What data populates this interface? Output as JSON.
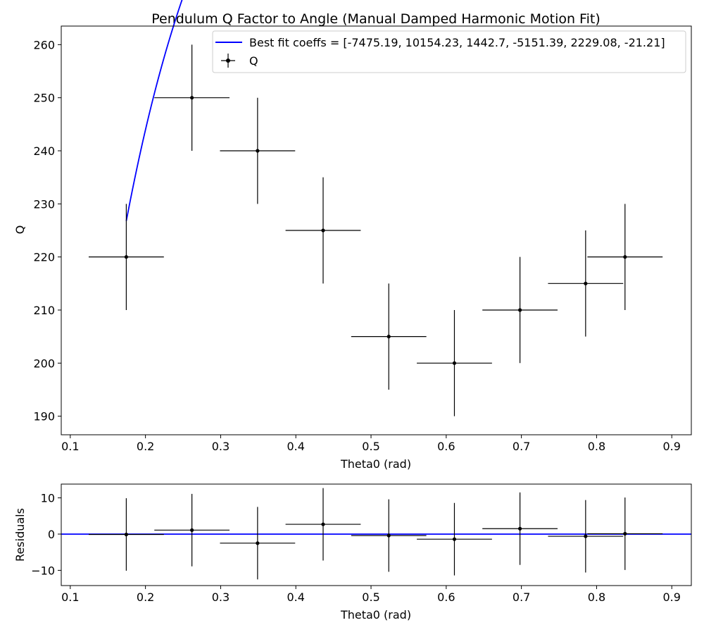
{
  "chart_data": [
    {
      "type": "scatter",
      "title": "Pendulum Q Factor to Angle (Manual Damped Harmonic Motion Fit)",
      "xlabel": "Theta0 (rad)",
      "ylabel": "Q",
      "xlim": [
        0.088,
        0.926
      ],
      "ylim": [
        186.5,
        263.5
      ],
      "xticks": [
        0.1,
        0.2,
        0.3,
        0.4,
        0.5,
        0.6,
        0.7,
        0.8,
        0.9
      ],
      "xtick_labels": [
        "0.1",
        "0.2",
        "0.3",
        "0.4",
        "0.5",
        "0.6",
        "0.7",
        "0.8",
        "0.9"
      ],
      "yticks": [
        190,
        200,
        210,
        220,
        230,
        240,
        250,
        260
      ],
      "ytick_labels": [
        "190",
        "200",
        "210",
        "220",
        "230",
        "240",
        "250",
        "260"
      ],
      "grid": false,
      "legend_position": "top-right",
      "fit_label": "Best fit coeffs = [-7475.19, 10154.23, 1442.7, -5151.39, 2229.08, -21.21]",
      "fit_color": "#0000ff",
      "fit_coeffs": [
        -7475.19,
        10154.23,
        1442.7,
        -5151.39,
        2229.08,
        -21.21
      ],
      "fit_x_range": [
        0.1745,
        0.8378
      ],
      "series": [
        {
          "name": "Q",
          "color": "#000000",
          "x": [
            0.1745,
            0.2618,
            0.3491,
            0.4363,
            0.5236,
            0.6109,
            0.6981,
            0.7854,
            0.8378
          ],
          "y": [
            220,
            250,
            240,
            225,
            205,
            200,
            210,
            215,
            220
          ],
          "xerr": [
            0.05,
            0.05,
            0.05,
            0.05,
            0.05,
            0.05,
            0.05,
            0.05,
            0.05
          ],
          "yerr": [
            10,
            10,
            10,
            10,
            10,
            10,
            10,
            10,
            10
          ]
        }
      ]
    },
    {
      "type": "scatter",
      "title": "",
      "xlabel": "Theta0 (rad)",
      "ylabel": "Residuals",
      "xlim": [
        0.088,
        0.926
      ],
      "ylim": [
        -14.2,
        13.8
      ],
      "xticks": [
        0.1,
        0.2,
        0.3,
        0.4,
        0.5,
        0.6,
        0.7,
        0.8,
        0.9
      ],
      "xtick_labels": [
        "0.1",
        "0.2",
        "0.3",
        "0.4",
        "0.5",
        "0.6",
        "0.7",
        "0.8",
        "0.9"
      ],
      "yticks": [
        -10,
        0,
        10
      ],
      "ytick_labels": [
        "−10",
        "0",
        "10"
      ],
      "grid": false,
      "zero_line_color": "#0000ff",
      "series": [
        {
          "color": "#000000",
          "x": [
            0.1745,
            0.2618,
            0.3491,
            0.4363,
            0.5236,
            0.6109,
            0.6981,
            0.7854,
            0.8378
          ],
          "y": [
            -0.1,
            1.1,
            -2.5,
            2.7,
            -0.4,
            -1.4,
            1.5,
            -0.6,
            0.1
          ],
          "xerr": [
            0.05,
            0.05,
            0.05,
            0.05,
            0.05,
            0.05,
            0.05,
            0.05,
            0.05
          ],
          "yerr": [
            10,
            10,
            10,
            10,
            10,
            10,
            10,
            10,
            10
          ]
        }
      ]
    }
  ]
}
